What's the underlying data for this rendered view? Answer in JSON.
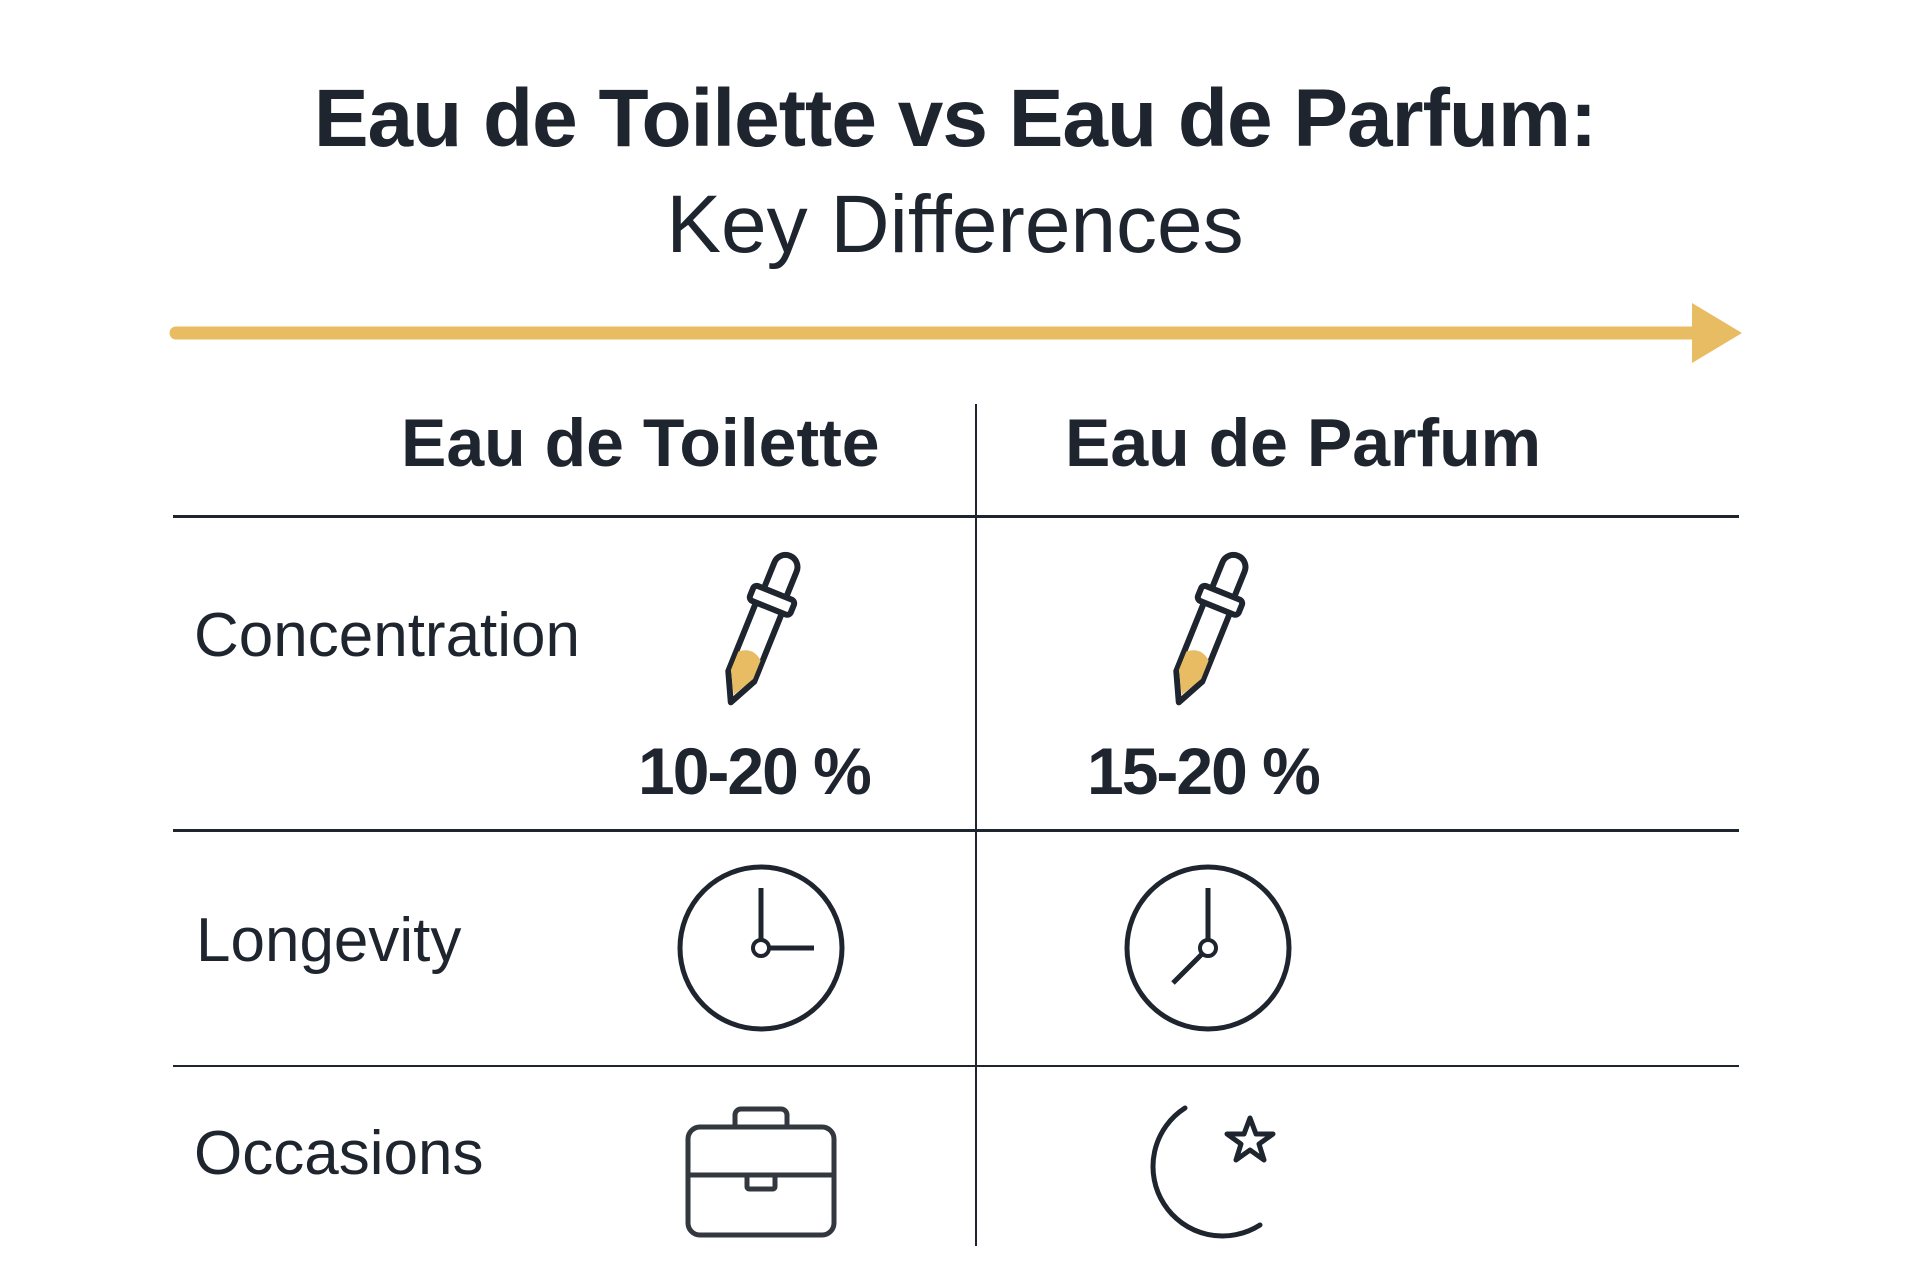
{
  "title": {
    "line1": "Eau de Toilette vs Eau de Parfum:",
    "line2": "Key Differences"
  },
  "colors": {
    "accent": "#E8BC62",
    "text": "#1f252e"
  },
  "columns": [
    "Eau de Toilette",
    "Eau de Parfum"
  ],
  "rows": [
    {
      "label": "Concentration",
      "icon": "dropper-icon",
      "values": [
        "10-20 %",
        "15-20 %"
      ]
    },
    {
      "label": "Longevity",
      "icons": [
        "clock-3-oclock-icon",
        "clock-7-oclock-icon"
      ]
    },
    {
      "label": "Occasions",
      "icons": [
        "briefcase-icon",
        "moon-star-icon"
      ]
    }
  ]
}
